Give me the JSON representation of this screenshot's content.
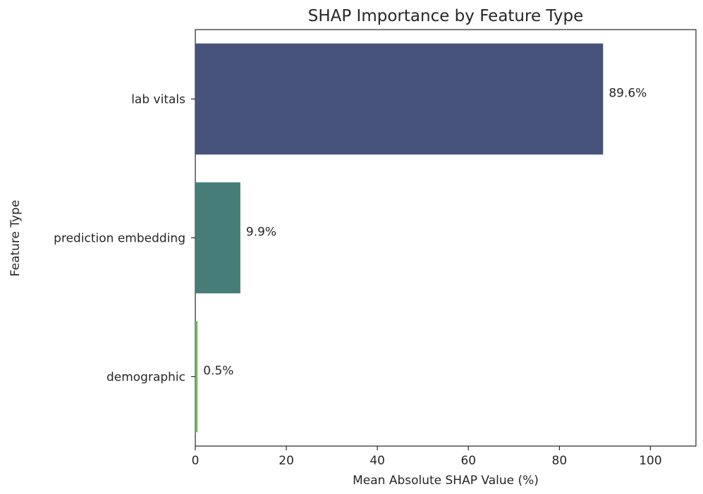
{
  "chart_data": {
    "type": "bar",
    "orientation": "horizontal",
    "title": "SHAP Importance by Feature Type",
    "xlabel": "Mean Absolute SHAP Value (%)",
    "ylabel": "Feature Type",
    "categories": [
      "lab vitals",
      "prediction embedding",
      "demographic"
    ],
    "values": [
      89.6,
      9.9,
      0.5
    ],
    "value_labels": [
      "89.6%",
      "9.9%",
      "0.5%"
    ],
    "colors": [
      "#47537a",
      "#477d78",
      "#6fb85c"
    ],
    "xlim": [
      0,
      110
    ],
    "xticks": [
      0,
      20,
      40,
      60,
      80,
      100
    ],
    "xtick_labels": [
      "0",
      "20",
      "40",
      "60",
      "80",
      "100"
    ],
    "grid": false,
    "legend": "none"
  }
}
